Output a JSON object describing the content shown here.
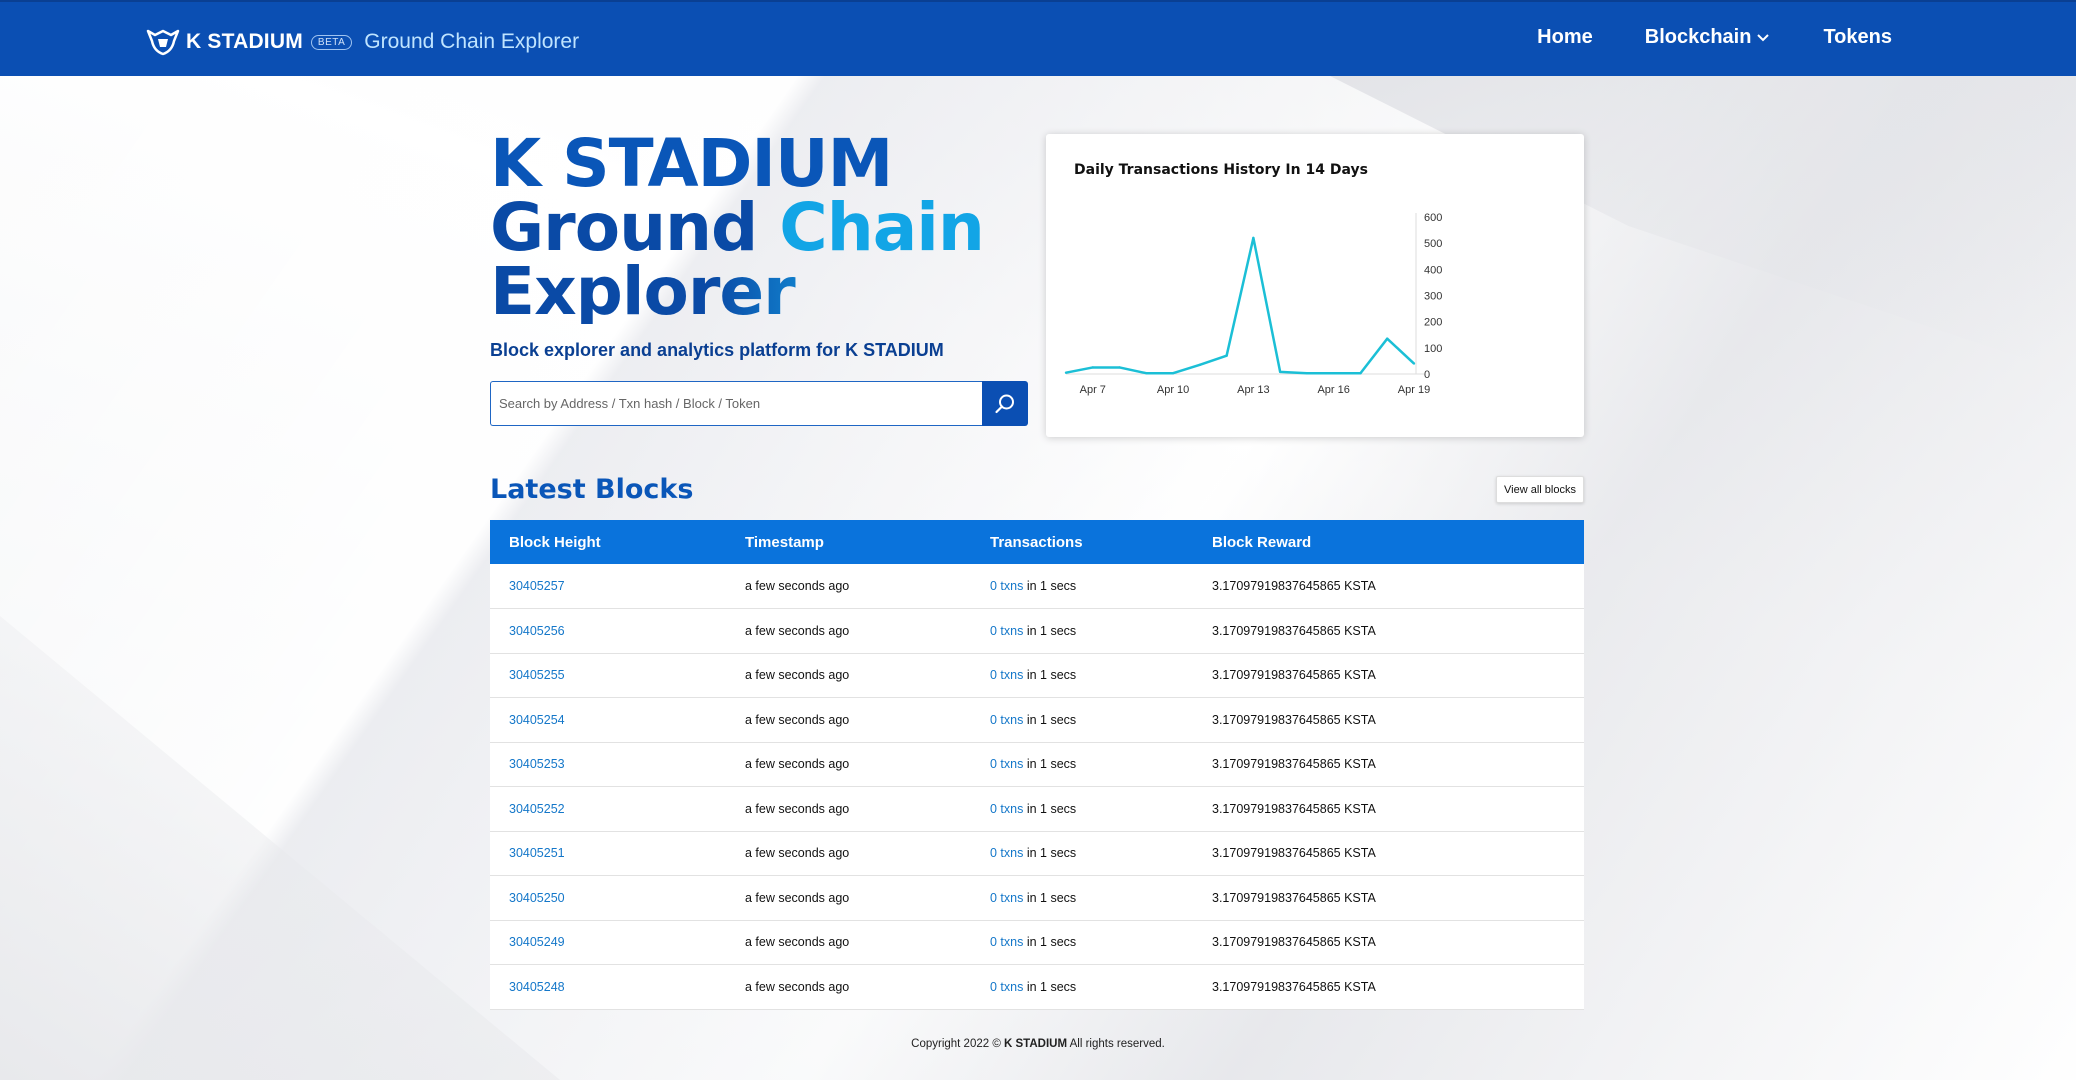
{
  "header": {
    "brand_name": "K STADIUM",
    "beta": "BETA",
    "subtitle": "Ground Chain Explorer",
    "nav": {
      "home": "Home",
      "blockchain": "Blockchain",
      "tokens": "Tokens"
    }
  },
  "hero": {
    "title_line1": "K STADIUM",
    "title_line2a": "Ground ",
    "title_line2b": "Chain",
    "title_line3": "Explorer",
    "subtitle": "Block explorer and analytics platform for K STADIUM",
    "search_placeholder": "Search by Address / Txn hash / Block / Token"
  },
  "chart_data": {
    "type": "line",
    "title": "Daily Transactions History In 14 Days",
    "x": [
      "Apr 6",
      "Apr 7",
      "Apr 8",
      "Apr 9",
      "Apr 10",
      "Apr 11",
      "Apr 12",
      "Apr 13",
      "Apr 14",
      "Apr 15",
      "Apr 16",
      "Apr 17",
      "Apr 18",
      "Apr 19"
    ],
    "x_ticks": [
      "Apr 7",
      "Apr 10",
      "Apr 13",
      "Apr 16",
      "Apr 19"
    ],
    "values": [
      5,
      25,
      25,
      3,
      3,
      35,
      70,
      520,
      8,
      3,
      3,
      3,
      135,
      40
    ],
    "ylim": [
      0,
      600
    ],
    "y_ticks": [
      0,
      100,
      200,
      300,
      400,
      500,
      600
    ],
    "y_axis_position": "right",
    "color": "#1bbfd6"
  },
  "latest_blocks": {
    "title": "Latest Blocks",
    "view_all": "View all blocks",
    "columns": [
      "Block Height",
      "Timestamp",
      "Transactions",
      "Block Reward"
    ],
    "rows": [
      {
        "height": "30405257",
        "time": "a few seconds ago",
        "txns": "0 txns",
        "txn_suffix": "in 1 secs",
        "reward": "3.17097919837645865 KSTA"
      },
      {
        "height": "30405256",
        "time": "a few seconds ago",
        "txns": "0 txns",
        "txn_suffix": "in 1 secs",
        "reward": "3.17097919837645865 KSTA"
      },
      {
        "height": "30405255",
        "time": "a few seconds ago",
        "txns": "0 txns",
        "txn_suffix": "in 1 secs",
        "reward": "3.17097919837645865 KSTA"
      },
      {
        "height": "30405254",
        "time": "a few seconds ago",
        "txns": "0 txns",
        "txn_suffix": "in 1 secs",
        "reward": "3.17097919837645865 KSTA"
      },
      {
        "height": "30405253",
        "time": "a few seconds ago",
        "txns": "0 txns",
        "txn_suffix": "in 1 secs",
        "reward": "3.17097919837645865 KSTA"
      },
      {
        "height": "30405252",
        "time": "a few seconds ago",
        "txns": "0 txns",
        "txn_suffix": "in 1 secs",
        "reward": "3.17097919837645865 KSTA"
      },
      {
        "height": "30405251",
        "time": "a few seconds ago",
        "txns": "0 txns",
        "txn_suffix": "in 1 secs",
        "reward": "3.17097919837645865 KSTA"
      },
      {
        "height": "30405250",
        "time": "a few seconds ago",
        "txns": "0 txns",
        "txn_suffix": "in 1 secs",
        "reward": "3.17097919837645865 KSTA"
      },
      {
        "height": "30405249",
        "time": "a few seconds ago",
        "txns": "0 txns",
        "txn_suffix": "in 1 secs",
        "reward": "3.17097919837645865 KSTA"
      },
      {
        "height": "30405248",
        "time": "a few seconds ago",
        "txns": "0 txns",
        "txn_suffix": "in 1 secs",
        "reward": "3.17097919837645865 KSTA"
      }
    ]
  },
  "footer": {
    "prefix": "Copyright 2022 ©",
    "brand": "K STADIUM",
    "suffix": "All rights reserved."
  }
}
